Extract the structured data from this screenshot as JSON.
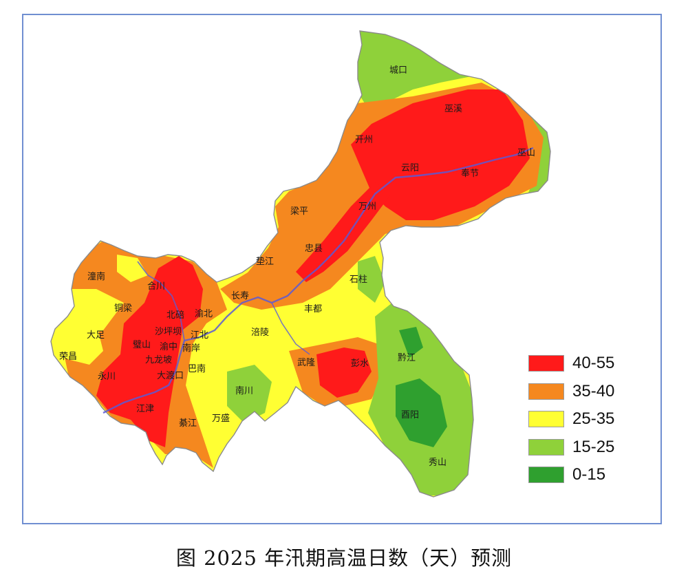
{
  "caption": "图   2025 年汛期高温日数（天）预测",
  "legend": [
    {
      "label": "40-55",
      "color": "#ff1a1a"
    },
    {
      "label": "35-40",
      "color": "#f5881f"
    },
    {
      "label": "25-35",
      "color": "#ffff33"
    },
    {
      "label": "15-25",
      "color": "#8fd13a"
    },
    {
      "label": "0-15",
      "color": "#2fa02f"
    }
  ],
  "places": [
    "城口",
    "巫溪",
    "开州",
    "巫山",
    "云阳",
    "奉节",
    "梁平",
    "万州",
    "忠县",
    "垫江",
    "石柱",
    "潼南",
    "合川",
    "长寿",
    "铜梁",
    "北碚",
    "渝北",
    "丰都",
    "大足",
    "沙坪坝",
    "江北",
    "涪陵",
    "璧山",
    "渝中",
    "南岸",
    "荣昌",
    "九龙坡",
    "巴南",
    "武隆",
    "彭水",
    "黔江",
    "永川",
    "大渡口",
    "南川",
    "江津",
    "綦江",
    "万盛",
    "酉阳",
    "秀山"
  ]
}
